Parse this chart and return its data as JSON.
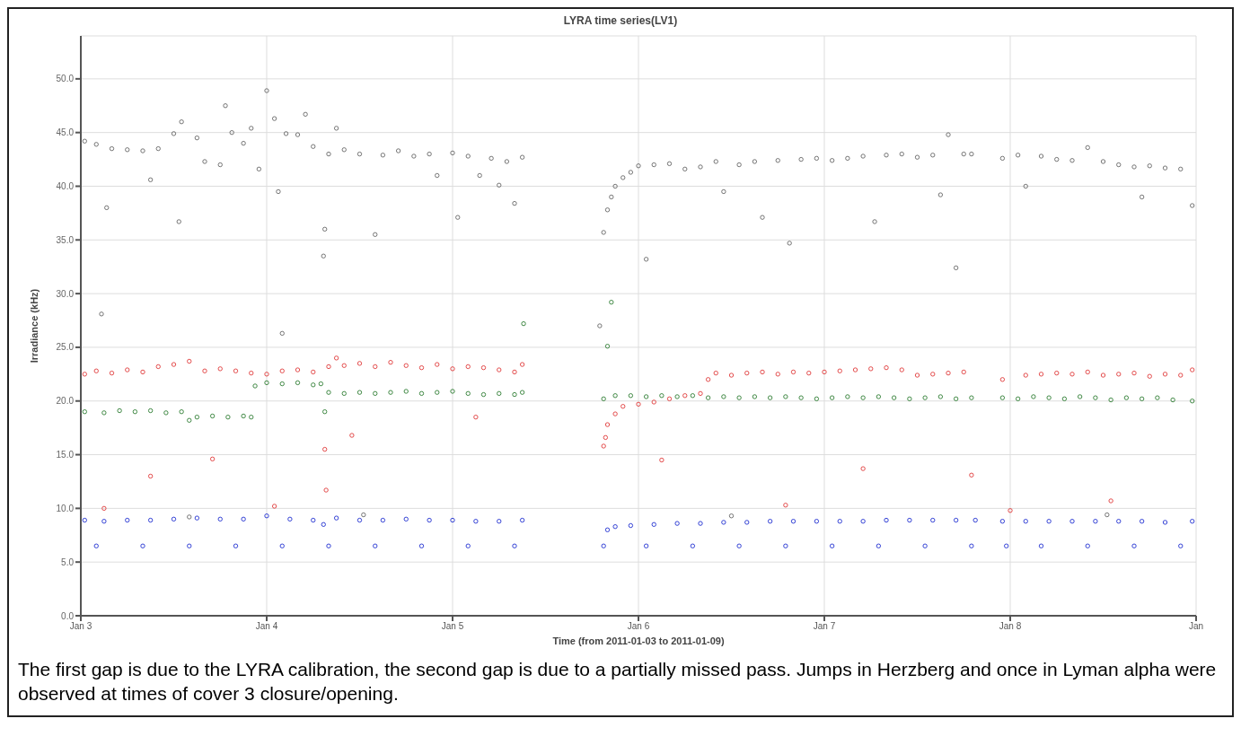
{
  "chart_data": {
    "type": "scatter",
    "title": "LYRA time series(LV1)",
    "xlabel": "Time (from 2011-01-03 to 2011-01-09)",
    "ylabel": "Irradiance (kHz)",
    "xlim": [
      "2011-01-03",
      "2011-01-09"
    ],
    "xticks": [
      {
        "value": "2011-01-03",
        "label": "Jan 3"
      },
      {
        "value": "2011-01-04",
        "label": "Jan 4"
      },
      {
        "value": "2011-01-05",
        "label": "Jan 5"
      },
      {
        "value": "2011-01-06",
        "label": "Jan 6"
      },
      {
        "value": "2011-01-07",
        "label": "Jan 7"
      },
      {
        "value": "2011-01-08",
        "label": "Jan 8"
      },
      {
        "value": "2011-01-09",
        "label": "Jan"
      }
    ],
    "ylim": [
      0,
      54
    ],
    "yticks": [
      {
        "value": 0,
        "label": "0.0"
      },
      {
        "value": 5,
        "label": "5.0"
      },
      {
        "value": 10,
        "label": "10.0"
      },
      {
        "value": 15,
        "label": "15.0"
      },
      {
        "value": 20,
        "label": "20.0"
      },
      {
        "value": 25,
        "label": "25.0"
      },
      {
        "value": 30,
        "label": "30.0"
      },
      {
        "value": 35,
        "label": "35.0"
      },
      {
        "value": 40,
        "label": "40.0"
      },
      {
        "value": 45,
        "label": "45.0"
      },
      {
        "value": 50,
        "label": "50.0"
      }
    ],
    "grid": true,
    "marker": "circle",
    "legend": false,
    "annotations": [
      "The first gap is due to the LYRA calibration, the second gap is due to a partially missed pass. Jumps in Herzberg and once in Lyman alpha were observed at times of cover 3 closure/opening."
    ],
    "series": [
      {
        "color": "#666666",
        "x": [
          "2011-01-03T00:30",
          "2011-01-03T02:00",
          "2011-01-03T02:40",
          "2011-01-03T03:20",
          "2011-01-03T04:00",
          "2011-01-03T06:00",
          "2011-01-03T08:00",
          "2011-01-03T09:00",
          "2011-01-03T10:00",
          "2011-01-03T12:00",
          "2011-01-03T12:40",
          "2011-01-03T13:00",
          "2011-01-03T14:00",
          "2011-01-03T15:00",
          "2011-01-03T16:00",
          "2011-01-03T18:00",
          "2011-01-03T18:40",
          "2011-01-03T19:30",
          "2011-01-03T21:00",
          "2011-01-03T22:00",
          "2011-01-03T23:00",
          "2011-01-04T00:00",
          "2011-01-04T01:00",
          "2011-01-04T01:30",
          "2011-01-04T02:00",
          "2011-01-04T02:30",
          "2011-01-04T04:00",
          "2011-01-04T05:00",
          "2011-01-04T06:00",
          "2011-01-04T07:20",
          "2011-01-04T07:30",
          "2011-01-04T08:00",
          "2011-01-04T09:00",
          "2011-01-04T10:00",
          "2011-01-04T12:00",
          "2011-01-04T12:30",
          "2011-01-04T14:00",
          "2011-01-04T15:00",
          "2011-01-04T17:00",
          "2011-01-04T19:00",
          "2011-01-04T21:00",
          "2011-01-04T22:00",
          "2011-01-05T00:00",
          "2011-01-05T00:40",
          "2011-01-05T02:00",
          "2011-01-05T03:30",
          "2011-01-05T05:00",
          "2011-01-05T06:00",
          "2011-01-05T07:00",
          "2011-01-05T08:00",
          "2011-01-05T09:00",
          "2011-01-05T19:00",
          "2011-01-05T19:30",
          "2011-01-05T20:00",
          "2011-01-05T20:30",
          "2011-01-05T21:00",
          "2011-01-05T22:00",
          "2011-01-05T23:00",
          "2011-01-06T00:00",
          "2011-01-06T01:00",
          "2011-01-06T02:00",
          "2011-01-06T04:00",
          "2011-01-06T06:00",
          "2011-01-06T08:00",
          "2011-01-06T10:00",
          "2011-01-06T11:00",
          "2011-01-06T12:00",
          "2011-01-06T13:00",
          "2011-01-06T15:00",
          "2011-01-06T16:00",
          "2011-01-06T18:00",
          "2011-01-06T19:30",
          "2011-01-06T21:00",
          "2011-01-06T23:00",
          "2011-01-07T01:00",
          "2011-01-07T03:00",
          "2011-01-07T05:00",
          "2011-01-07T06:30",
          "2011-01-07T08:00",
          "2011-01-07T10:00",
          "2011-01-07T12:00",
          "2011-01-07T14:00",
          "2011-01-07T15:00",
          "2011-01-07T16:00",
          "2011-01-07T17:00",
          "2011-01-07T18:00",
          "2011-01-07T19:00",
          "2011-01-07T23:00",
          "2011-01-08T01:00",
          "2011-01-08T02:00",
          "2011-01-08T04:00",
          "2011-01-08T06:00",
          "2011-01-08T08:00",
          "2011-01-08T10:00",
          "2011-01-08T12:00",
          "2011-01-08T12:30",
          "2011-01-08T14:00",
          "2011-01-08T16:00",
          "2011-01-08T17:00",
          "2011-01-08T18:00",
          "2011-01-08T20:00",
          "2011-01-08T22:00",
          "2011-01-08T23:30"
        ],
        "values": [
          44.2,
          43.9,
          28.1,
          38.0,
          43.5,
          43.4,
          43.3,
          40.6,
          43.5,
          44.9,
          36.7,
          46.0,
          9.2,
          44.5,
          42.3,
          42.0,
          47.5,
          45.0,
          44.0,
          45.4,
          41.6,
          48.9,
          46.3,
          39.5,
          26.3,
          44.9,
          44.8,
          46.7,
          43.7,
          33.5,
          36.0,
          43.0,
          45.4,
          43.4,
          43.0,
          9.4,
          35.5,
          42.9,
          43.3,
          42.8,
          43.0,
          41.0,
          43.1,
          37.1,
          42.8,
          41.0,
          42.6,
          40.1,
          42.3,
          38.4,
          42.7,
          27.0,
          35.7,
          37.8,
          39.0,
          40.0,
          40.8,
          41.3,
          41.9,
          33.2,
          42.0,
          42.1,
          41.6,
          41.8,
          42.3,
          39.5,
          9.3,
          42.0,
          42.3,
          37.1,
          42.4,
          34.7,
          42.5,
          42.6,
          42.4,
          42.6,
          42.8,
          36.7,
          42.9,
          43.0,
          42.7,
          42.9,
          39.2,
          44.8,
          32.4,
          43.0,
          43.0,
          42.6,
          42.9,
          40.0,
          42.8,
          42.5,
          42.4,
          43.6,
          42.3,
          9.4,
          42.0,
          41.8,
          39.0,
          41.9,
          41.7,
          41.6,
          38.2
        ]
      },
      {
        "color": "#e03a3a",
        "x": [
          "2011-01-03T00:30",
          "2011-01-03T02:00",
          "2011-01-03T03:00",
          "2011-01-03T04:00",
          "2011-01-03T06:00",
          "2011-01-03T08:00",
          "2011-01-03T09:00",
          "2011-01-03T10:00",
          "2011-01-03T12:00",
          "2011-01-03T14:00",
          "2011-01-03T16:00",
          "2011-01-03T17:00",
          "2011-01-03T18:00",
          "2011-01-03T20:00",
          "2011-01-03T22:00",
          "2011-01-04T00:00",
          "2011-01-04T01:00",
          "2011-01-04T02:00",
          "2011-01-04T04:00",
          "2011-01-04T06:00",
          "2011-01-04T07:30",
          "2011-01-04T07:40",
          "2011-01-04T08:00",
          "2011-01-04T09:00",
          "2011-01-04T10:00",
          "2011-01-04T11:00",
          "2011-01-04T12:00",
          "2011-01-04T14:00",
          "2011-01-04T16:00",
          "2011-01-04T18:00",
          "2011-01-04T20:00",
          "2011-01-04T22:00",
          "2011-01-05T00:00",
          "2011-01-05T02:00",
          "2011-01-05T03:00",
          "2011-01-05T04:00",
          "2011-01-05T06:00",
          "2011-01-05T08:00",
          "2011-01-05T09:00",
          "2011-01-05T19:30",
          "2011-01-05T19:45",
          "2011-01-05T20:00",
          "2011-01-05T21:00",
          "2011-01-05T22:00",
          "2011-01-06T00:00",
          "2011-01-06T02:00",
          "2011-01-06T03:00",
          "2011-01-06T04:00",
          "2011-01-06T06:00",
          "2011-01-06T08:00",
          "2011-01-06T09:00",
          "2011-01-06T10:00",
          "2011-01-06T12:00",
          "2011-01-06T14:00",
          "2011-01-06T16:00",
          "2011-01-06T18:00",
          "2011-01-06T19:00",
          "2011-01-06T20:00",
          "2011-01-06T22:00",
          "2011-01-07T00:00",
          "2011-01-07T02:00",
          "2011-01-07T04:00",
          "2011-01-07T05:00",
          "2011-01-07T06:00",
          "2011-01-07T08:00",
          "2011-01-07T10:00",
          "2011-01-07T12:00",
          "2011-01-07T14:00",
          "2011-01-07T16:00",
          "2011-01-07T18:00",
          "2011-01-07T19:00",
          "2011-01-07T23:00",
          "2011-01-08T00:00",
          "2011-01-08T02:00",
          "2011-01-08T04:00",
          "2011-01-08T06:00",
          "2011-01-08T08:00",
          "2011-01-08T10:00",
          "2011-01-08T12:00",
          "2011-01-08T13:00",
          "2011-01-08T14:00",
          "2011-01-08T16:00",
          "2011-01-08T18:00",
          "2011-01-08T20:00",
          "2011-01-08T22:00",
          "2011-01-08T23:30"
        ],
        "values": [
          22.5,
          22.8,
          10.0,
          22.6,
          22.9,
          22.7,
          13.0,
          23.2,
          23.4,
          23.7,
          22.8,
          14.6,
          23.0,
          22.8,
          22.6,
          22.5,
          10.2,
          22.8,
          22.9,
          22.7,
          15.5,
          11.7,
          23.2,
          24.0,
          23.3,
          16.8,
          23.5,
          23.2,
          23.6,
          23.3,
          23.1,
          23.4,
          23.0,
          23.2,
          18.5,
          23.1,
          22.9,
          22.7,
          23.4,
          15.8,
          16.6,
          17.8,
          18.8,
          19.5,
          19.7,
          19.9,
          14.5,
          20.2,
          20.5,
          20.7,
          22.0,
          22.6,
          22.4,
          22.6,
          22.7,
          22.5,
          10.3,
          22.7,
          22.6,
          22.7,
          22.8,
          22.9,
          13.7,
          23.0,
          23.1,
          22.9,
          22.4,
          22.5,
          22.6,
          22.7,
          13.1,
          22.0,
          9.8,
          22.4,
          22.5,
          22.6,
          22.5,
          22.7,
          22.4,
          10.7,
          22.5,
          22.6,
          22.3,
          22.5,
          22.4,
          22.9
        ]
      },
      {
        "color": "#2e7d32",
        "x": [
          "2011-01-03T00:30",
          "2011-01-03T03:00",
          "2011-01-03T05:00",
          "2011-01-03T07:00",
          "2011-01-03T09:00",
          "2011-01-03T11:00",
          "2011-01-03T13:00",
          "2011-01-03T14:00",
          "2011-01-03T15:00",
          "2011-01-03T17:00",
          "2011-01-03T19:00",
          "2011-01-03T21:00",
          "2011-01-03T22:00",
          "2011-01-03T22:30",
          "2011-01-04T00:00",
          "2011-01-04T02:00",
          "2011-01-04T04:00",
          "2011-01-04T06:00",
          "2011-01-04T07:00",
          "2011-01-04T07:30",
          "2011-01-04T08:00",
          "2011-01-04T10:00",
          "2011-01-04T12:00",
          "2011-01-04T14:00",
          "2011-01-04T16:00",
          "2011-01-04T18:00",
          "2011-01-04T20:00",
          "2011-01-04T22:00",
          "2011-01-05T00:00",
          "2011-01-05T02:00",
          "2011-01-05T04:00",
          "2011-01-05T06:00",
          "2011-01-05T08:00",
          "2011-01-05T09:00",
          "2011-01-05T09:10",
          "2011-01-05T19:30",
          "2011-01-05T20:00",
          "2011-01-05T20:30",
          "2011-01-05T21:00",
          "2011-01-05T23:00",
          "2011-01-06T01:00",
          "2011-01-06T03:00",
          "2011-01-06T05:00",
          "2011-01-06T07:00",
          "2011-01-06T09:00",
          "2011-01-06T11:00",
          "2011-01-06T13:00",
          "2011-01-06T15:00",
          "2011-01-06T17:00",
          "2011-01-06T19:00",
          "2011-01-06T21:00",
          "2011-01-06T23:00",
          "2011-01-07T01:00",
          "2011-01-07T03:00",
          "2011-01-07T05:00",
          "2011-01-07T07:00",
          "2011-01-07T09:00",
          "2011-01-07T11:00",
          "2011-01-07T13:00",
          "2011-01-07T15:00",
          "2011-01-07T17:00",
          "2011-01-07T19:00",
          "2011-01-07T23:00",
          "2011-01-08T01:00",
          "2011-01-08T03:00",
          "2011-01-08T05:00",
          "2011-01-08T07:00",
          "2011-01-08T09:00",
          "2011-01-08T11:00",
          "2011-01-08T13:00",
          "2011-01-08T15:00",
          "2011-01-08T17:00",
          "2011-01-08T19:00",
          "2011-01-08T21:00",
          "2011-01-08T23:30"
        ],
        "values": [
          19.0,
          18.9,
          19.1,
          19.0,
          19.1,
          18.9,
          19.0,
          18.2,
          18.5,
          18.6,
          18.5,
          18.6,
          18.5,
          21.4,
          21.7,
          21.6,
          21.7,
          21.5,
          21.6,
          19.0,
          20.8,
          20.7,
          20.8,
          20.7,
          20.8,
          20.9,
          20.7,
          20.8,
          20.9,
          20.7,
          20.6,
          20.7,
          20.6,
          20.8,
          27.2,
          20.2,
          25.1,
          29.2,
          20.5,
          20.5,
          20.4,
          20.5,
          20.4,
          20.5,
          20.3,
          20.4,
          20.3,
          20.4,
          20.3,
          20.4,
          20.3,
          20.2,
          20.3,
          20.4,
          20.3,
          20.4,
          20.3,
          20.2,
          20.3,
          20.4,
          20.2,
          20.3,
          20.3,
          20.2,
          20.4,
          20.3,
          20.2,
          20.4,
          20.3,
          20.1,
          20.3,
          20.2,
          20.3,
          20.1,
          20.0
        ]
      },
      {
        "color": "#1f2fd0",
        "x": [
          "2011-01-03T00:30",
          "2011-01-03T02:00",
          "2011-01-03T03:00",
          "2011-01-03T06:00",
          "2011-01-03T08:00",
          "2011-01-03T09:00",
          "2011-01-03T12:00",
          "2011-01-03T14:00",
          "2011-01-03T15:00",
          "2011-01-03T18:00",
          "2011-01-03T20:00",
          "2011-01-03T21:00",
          "2011-01-04T00:00",
          "2011-01-04T02:00",
          "2011-01-04T03:00",
          "2011-01-04T06:00",
          "2011-01-04T07:20",
          "2011-01-04T08:00",
          "2011-01-04T09:00",
          "2011-01-04T12:00",
          "2011-01-04T14:00",
          "2011-01-04T15:00",
          "2011-01-04T18:00",
          "2011-01-04T20:00",
          "2011-01-04T21:00",
          "2011-01-05T00:00",
          "2011-01-05T02:00",
          "2011-01-05T03:00",
          "2011-01-05T06:00",
          "2011-01-05T08:00",
          "2011-01-05T09:00",
          "2011-01-05T19:30",
          "2011-01-05T20:00",
          "2011-01-05T21:00",
          "2011-01-05T23:00",
          "2011-01-06T01:00",
          "2011-01-06T02:00",
          "2011-01-06T05:00",
          "2011-01-06T07:00",
          "2011-01-06T08:00",
          "2011-01-06T11:00",
          "2011-01-06T13:00",
          "2011-01-06T14:00",
          "2011-01-06T17:00",
          "2011-01-06T19:00",
          "2011-01-06T20:00",
          "2011-01-06T23:00",
          "2011-01-07T01:00",
          "2011-01-07T02:00",
          "2011-01-07T05:00",
          "2011-01-07T07:00",
          "2011-01-07T08:00",
          "2011-01-07T11:00",
          "2011-01-07T13:00",
          "2011-01-07T14:00",
          "2011-01-07T17:00",
          "2011-01-07T19:00",
          "2011-01-07T19:30",
          "2011-01-07T23:00",
          "2011-01-07T23:30",
          "2011-01-08T02:00",
          "2011-01-08T04:00",
          "2011-01-08T05:00",
          "2011-01-08T08:00",
          "2011-01-08T10:00",
          "2011-01-08T11:00",
          "2011-01-08T14:00",
          "2011-01-08T16:00",
          "2011-01-08T17:00",
          "2011-01-08T20:00",
          "2011-01-08T22:00",
          "2011-01-08T23:30"
        ],
        "values": [
          8.9,
          6.5,
          8.8,
          8.9,
          6.5,
          8.9,
          9.0,
          6.5,
          9.1,
          9.0,
          6.5,
          9.0,
          9.3,
          6.5,
          9.0,
          8.9,
          8.5,
          6.5,
          9.1,
          8.9,
          6.5,
          8.9,
          9.0,
          6.5,
          8.9,
          8.9,
          6.5,
          8.8,
          8.8,
          6.5,
          8.9,
          6.5,
          8.0,
          8.3,
          8.4,
          6.5,
          8.5,
          8.6,
          6.5,
          8.6,
          8.7,
          6.5,
          8.7,
          8.8,
          6.5,
          8.8,
          8.8,
          6.5,
          8.8,
          8.8,
          6.5,
          8.9,
          8.9,
          6.5,
          8.9,
          8.9,
          6.5,
          8.9,
          8.8,
          6.5,
          8.8,
          6.5,
          8.8,
          8.8,
          6.5,
          8.8,
          8.8,
          6.5,
          8.8,
          8.7,
          6.5,
          8.8
        ]
      }
    ]
  }
}
